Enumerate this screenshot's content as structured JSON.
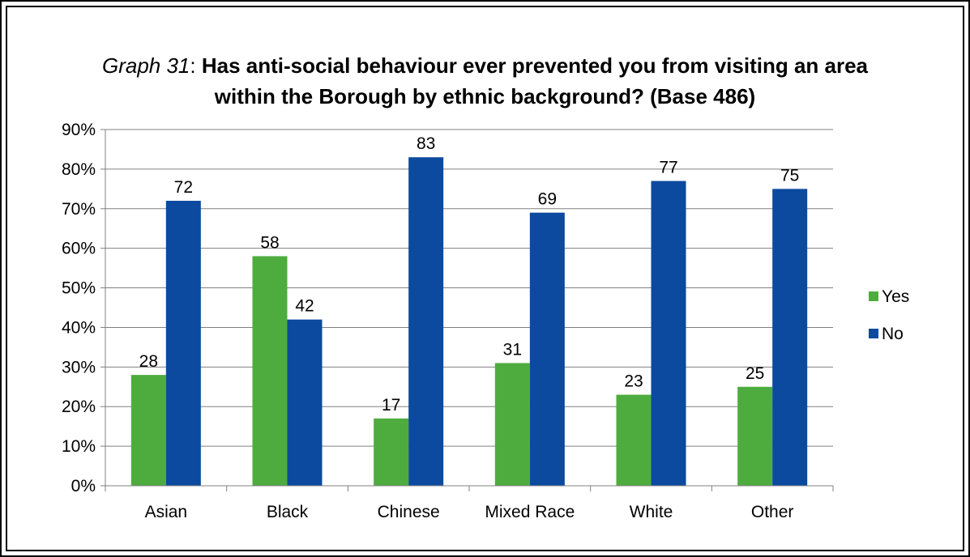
{
  "title": {
    "prefix": "Graph 31",
    "separator": ": ",
    "line1": "Has anti-social behaviour ever prevented you from visiting an area",
    "line2": "within the Borough by ethnic background? (Base 486)"
  },
  "colors": {
    "yes": "#4EAC3E",
    "no": "#0B4A9E",
    "grid": "#808080"
  },
  "chart_data": {
    "type": "bar",
    "title": "Graph 31: Has anti-social behaviour ever prevented you from visiting an area within the Borough by ethnic background? (Base 486)",
    "categories": [
      "Asian",
      "Black",
      "Chinese",
      "Mixed Race",
      "White",
      "Other"
    ],
    "series": [
      {
        "name": "Yes",
        "values": [
          28,
          58,
          17,
          31,
          23,
          25
        ]
      },
      {
        "name": "No",
        "values": [
          72,
          42,
          83,
          69,
          77,
          75
        ]
      }
    ],
    "ylim": [
      0,
      90
    ],
    "yticks": [
      0,
      10,
      20,
      30,
      40,
      50,
      60,
      70,
      80,
      90
    ],
    "ytick_labels": [
      "0%",
      "10%",
      "20%",
      "30%",
      "40%",
      "50%",
      "60%",
      "70%",
      "80%",
      "90%"
    ],
    "grid": true,
    "legend": "right"
  }
}
